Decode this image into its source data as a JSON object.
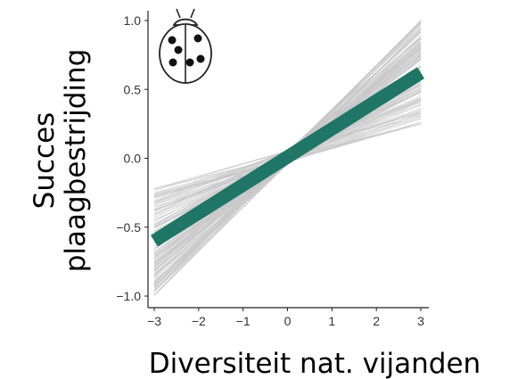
{
  "chart_data": {
    "type": "line",
    "title": "",
    "xlabel": "Diversiteit nat. vijanden",
    "ylabel_lines": [
      "Succes",
      "plaagbestrijding"
    ],
    "x_ticks": [
      "−3",
      "−2",
      "−1",
      "0",
      "1",
      "2",
      "3"
    ],
    "y_ticks": [
      "1.0",
      "0.5",
      "0.0",
      "−0.5",
      "−1.0"
    ],
    "xlim": [
      -3,
      3
    ],
    "ylim": [
      -1.05,
      1.05
    ],
    "grid": false,
    "series": [
      {
        "x": [
          -3,
          3
        ],
        "y": [
          -0.6,
          0.62
        ]
      }
    ],
    "uncertainty_band": {
      "draws": 220,
      "lower_at_xmin": -1.0,
      "upper_at_xmin": -0.22,
      "lower_at_xmax": 0.25,
      "upper_at_xmax": 1.0
    },
    "colors": {
      "mean_line": "#1f7566",
      "draws": "#c8c8c8"
    },
    "icon": "ladybug-icon"
  }
}
